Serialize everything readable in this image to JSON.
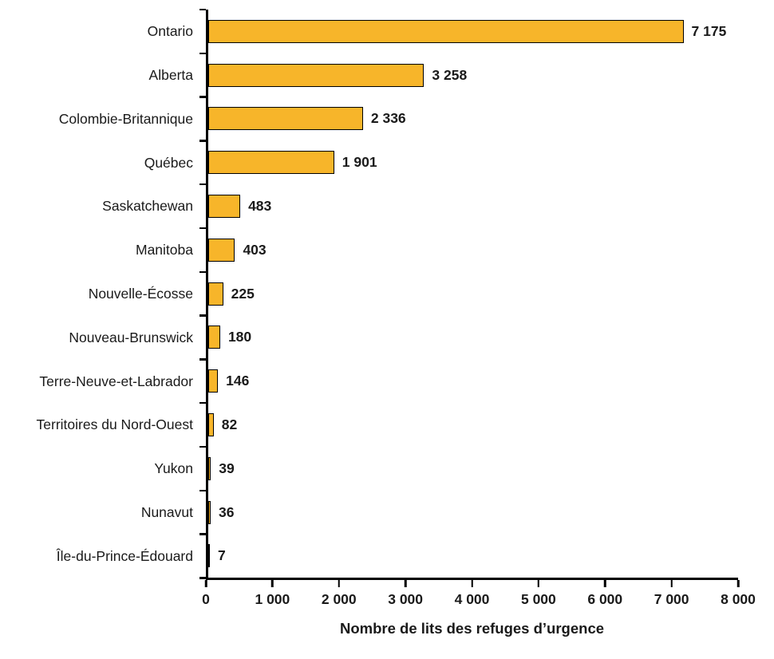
{
  "chart_data": {
    "type": "bar",
    "orientation": "horizontal",
    "title": "",
    "xlabel": "Nombre de lits des refuges d’urgence",
    "ylabel": "",
    "xlim": [
      0,
      8000
    ],
    "grid": false,
    "legend": false,
    "bar_color": "#F7B52A",
    "bar_border_color": "#000000",
    "categories": [
      "Ontario",
      "Alberta",
      "Colombie-Britannique",
      "Québec",
      "Saskatchewan",
      "Manitoba",
      "Nouvelle-Écosse",
      "Nouveau-Brunswick",
      "Terre-Neuve-et-Labrador",
      "Territoires du Nord-Ouest",
      "Yukon",
      "Nunavut",
      "Île-du-Prince-Édouard"
    ],
    "values": [
      7175,
      3258,
      2336,
      1901,
      483,
      403,
      225,
      180,
      146,
      82,
      39,
      36,
      7
    ],
    "value_labels": [
      "7 175",
      "3 258",
      "2 336",
      "1 901",
      "483",
      "403",
      "225",
      "180",
      "146",
      "82",
      "39",
      "36",
      "7"
    ],
    "x_ticks": [
      0,
      1000,
      2000,
      3000,
      4000,
      5000,
      6000,
      7000,
      8000
    ],
    "x_tick_labels": [
      "0",
      "1 000",
      "2 000",
      "3 000",
      "4 000",
      "5 000",
      "6 000",
      "7 000",
      "8 000"
    ]
  }
}
